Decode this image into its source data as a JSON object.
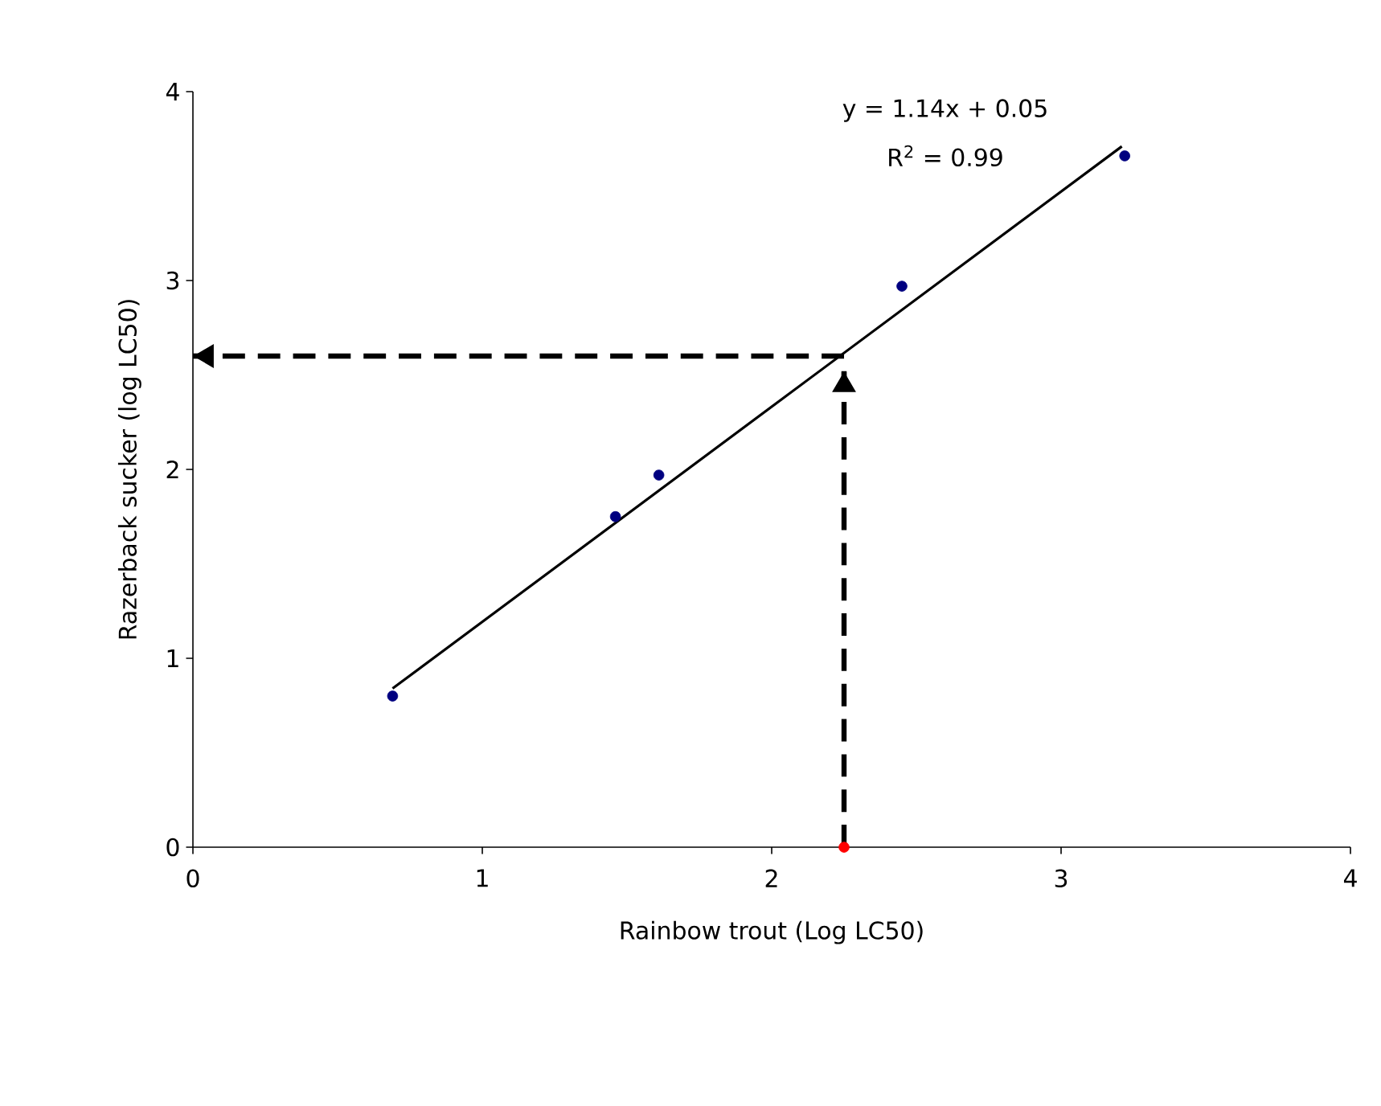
{
  "chart_data": {
    "type": "scatter",
    "xlabel": "Rainbow trout (Log LC50)",
    "ylabel": "Razerback sucker (log LC50)",
    "xlim": [
      0,
      4
    ],
    "ylim": [
      0,
      4
    ],
    "xticks": [
      0,
      1,
      2,
      3,
      4
    ],
    "yticks": [
      0,
      1,
      2,
      3,
      4
    ],
    "grid": false,
    "annotations": [
      "y = 1.14x + 0.05",
      "R$^{2}$ = 0.99"
    ],
    "series": [
      {
        "color": "#000080",
        "marker": "circle",
        "x": [
          0.69,
          1.46,
          1.61,
          2.45,
          3.22
        ],
        "values": [
          0.8,
          1.75,
          1.97,
          2.97,
          3.66
        ]
      },
      {
        "type": "line",
        "color": "#000000",
        "marker": "none",
        "line_style": "solid",
        "x": [
          0.69,
          3.21
        ],
        "values": [
          0.84,
          3.71
        ]
      },
      {
        "type": "line",
        "color": "#000000",
        "marker": "none",
        "line_style": "dashed",
        "x": [
          2.25,
          2.25
        ],
        "values": [
          0,
          2.52
        ]
      },
      {
        "type": "line",
        "color": "#000000",
        "marker": "none",
        "line_style": "dashed",
        "x": [
          2.25,
          0
        ],
        "values": [
          2.6,
          2.6
        ]
      },
      {
        "color": "#ff0000",
        "marker": "circle",
        "x": [
          2.25
        ],
        "values": [
          0
        ]
      }
    ]
  }
}
